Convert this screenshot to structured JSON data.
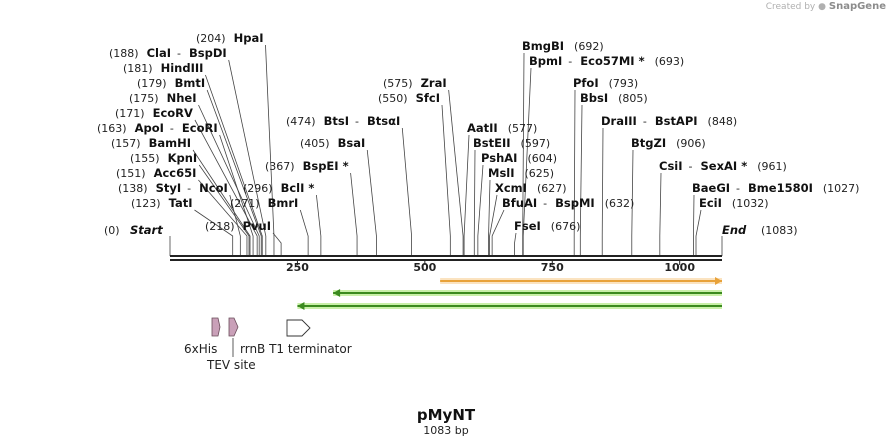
{
  "credit": {
    "prefix": "Created by",
    "brand": "SnapGene"
  },
  "plasmid": {
    "name": "pMyNT",
    "length_label": "1083 bp",
    "length": 1083
  },
  "ruler": {
    "ticks": [
      "250",
      "500",
      "750",
      "1000"
    ],
    "tick_values": [
      250,
      500,
      750,
      1000
    ]
  },
  "ends": {
    "start": {
      "label": "Start",
      "pos": "(0)",
      "bp": 0
    },
    "end": {
      "label": "End",
      "pos": "(1083)",
      "bp": 1083
    }
  },
  "sites": [
    {
      "pos": "(123)",
      "names": [
        "TatI"
      ],
      "bp": 123
    },
    {
      "pos": "(138)",
      "names": [
        "StyI",
        "NcoI"
      ],
      "bp": 138
    },
    {
      "pos": "(151)",
      "names": [
        "Acc65I"
      ],
      "bp": 151
    },
    {
      "pos": "(155)",
      "names": [
        "KpnI"
      ],
      "bp": 155
    },
    {
      "pos": "(157)",
      "names": [
        "BamHI"
      ],
      "bp": 157
    },
    {
      "pos": "(163)",
      "names": [
        "ApoI",
        "EcoRI"
      ],
      "bp": 163
    },
    {
      "pos": "(171)",
      "names": [
        "EcoRV"
      ],
      "bp": 171
    },
    {
      "pos": "(175)",
      "names": [
        "NheI"
      ],
      "bp": 175
    },
    {
      "pos": "(179)",
      "names": [
        "BmtI"
      ],
      "bp": 179
    },
    {
      "pos": "(181)",
      "names": [
        "HindIII"
      ],
      "bp": 181
    },
    {
      "pos": "(188)",
      "names": [
        "ClaI",
        "BspDI"
      ],
      "bp": 188
    },
    {
      "pos": "(204)",
      "names": [
        "HpaI"
      ],
      "bp": 204
    },
    {
      "pos": "(218)",
      "names": [
        "PvuI"
      ],
      "bp": 218
    },
    {
      "pos": "(271)",
      "names": [
        "BmrI"
      ],
      "bp": 271
    },
    {
      "pos": "(296)",
      "names": [
        "BclI *"
      ],
      "bp": 296
    },
    {
      "pos": "(367)",
      "names": [
        "BspEI *"
      ],
      "bp": 367
    },
    {
      "pos": "(405)",
      "names": [
        "BsaI"
      ],
      "bp": 405
    },
    {
      "pos": "(474)",
      "names": [
        "BtsI",
        "BtsαI"
      ],
      "bp": 474
    },
    {
      "pos": "(550)",
      "names": [
        "SfcI"
      ],
      "bp": 550
    },
    {
      "pos": "(575)",
      "names": [
        "ZraI"
      ],
      "bp": 575
    },
    {
      "pos": "(577)",
      "names": [
        "AatII"
      ],
      "bp": 577
    },
    {
      "pos": "(597)",
      "names": [
        "BstEII"
      ],
      "bp": 597
    },
    {
      "pos": "(604)",
      "names": [
        "PshAI"
      ],
      "bp": 604
    },
    {
      "pos": "(625)",
      "names": [
        "MslI"
      ],
      "bp": 625
    },
    {
      "pos": "(627)",
      "names": [
        "XcmI"
      ],
      "bp": 627
    },
    {
      "pos": "(632)",
      "names": [
        "BfuAI",
        "BspMI"
      ],
      "bp": 632
    },
    {
      "pos": "(676)",
      "names": [
        "FseI"
      ],
      "bp": 676
    },
    {
      "pos": "(692)",
      "names": [
        "BmgBI"
      ],
      "bp": 692
    },
    {
      "pos": "(693)",
      "names": [
        "BpmI",
        "Eco57MI *"
      ],
      "bp": 693
    },
    {
      "pos": "(793)",
      "names": [
        "PfoI"
      ],
      "bp": 793
    },
    {
      "pos": "(805)",
      "names": [
        "BbsI"
      ],
      "bp": 805
    },
    {
      "pos": "(848)",
      "names": [
        "DraIII",
        "BstAPI"
      ],
      "bp": 848
    },
    {
      "pos": "(906)",
      "names": [
        "BtgZI"
      ],
      "bp": 906
    },
    {
      "pos": "(961)",
      "names": [
        "CsiI",
        "SexAI *"
      ],
      "bp": 961
    },
    {
      "pos": "(1027)",
      "names": [
        "BaeGI",
        "Bme1580I"
      ],
      "bp": 1027
    },
    {
      "pos": "(1032)",
      "names": [
        "EciI"
      ],
      "bp": 1032
    }
  ],
  "tracks": [
    {
      "direction": "forward",
      "from_bp": 530,
      "to_bp": 1083,
      "color": "#e8a23a",
      "fill": "#fbe3c0"
    },
    {
      "direction": "reverse",
      "from_bp": 320,
      "to_bp": 1083,
      "color": "#3b8a1f",
      "fill": "#c9f0a8"
    },
    {
      "direction": "reverse",
      "from_bp": 250,
      "to_bp": 1083,
      "color": "#3b8a1f",
      "fill": "#c9f0a8"
    }
  ],
  "features": [
    {
      "label": "6xHis",
      "type": "small",
      "color": "#c9a0b8"
    },
    {
      "label": "TEV site",
      "type": "small",
      "color": "#c9a0b8"
    },
    {
      "label": "rrnB T1 terminator",
      "type": "terminator",
      "color": "#ffffff"
    }
  ],
  "colors": {
    "backbone": "#222222",
    "leader": "#444444",
    "site_blue": "#1a1a1a"
  }
}
